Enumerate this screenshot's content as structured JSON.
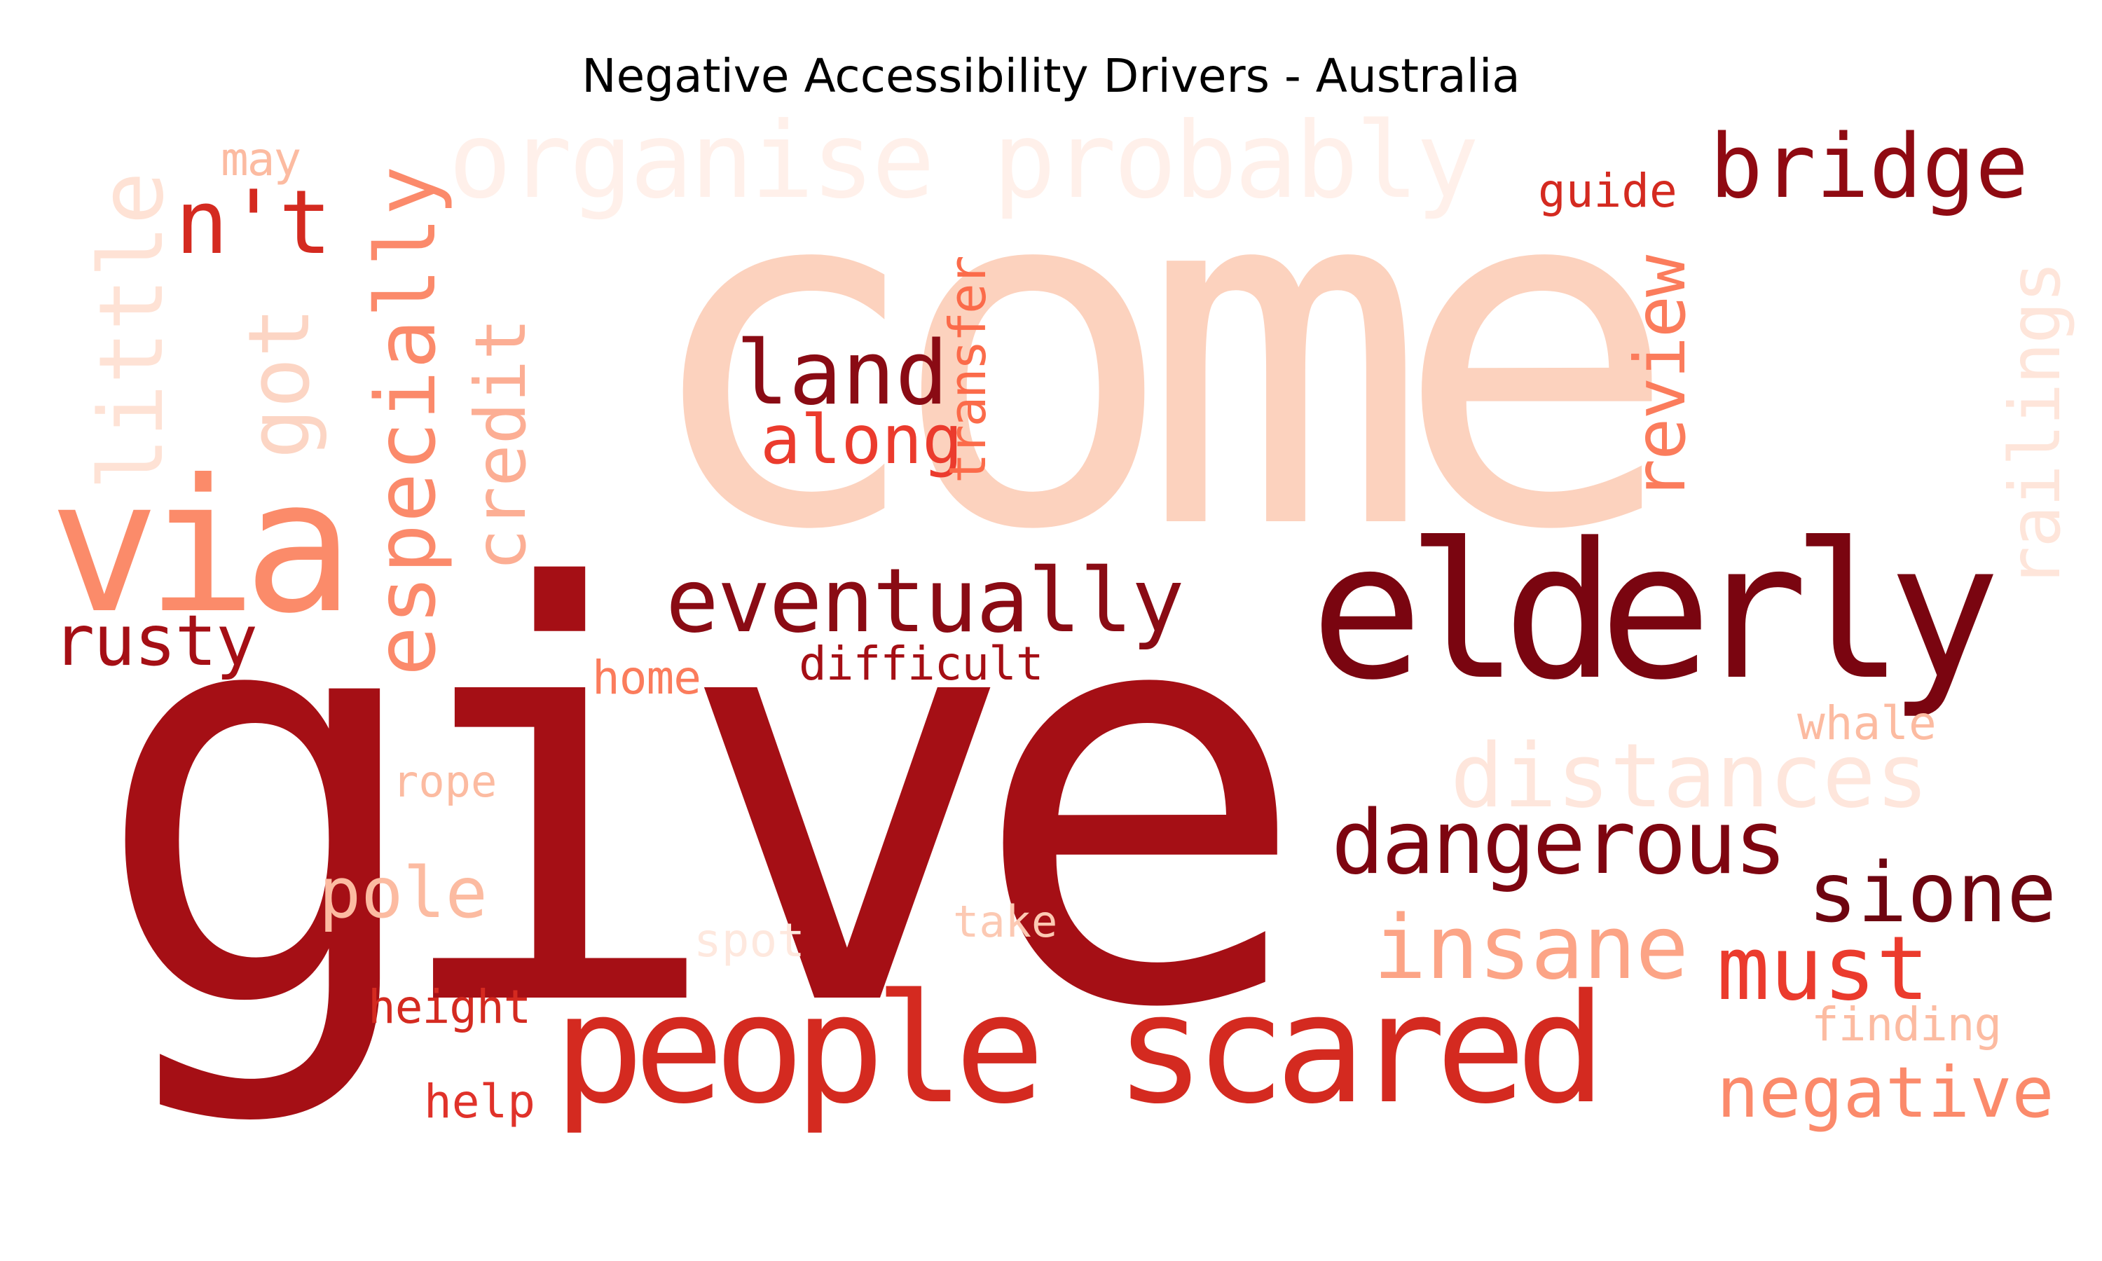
{
  "title": "Negative Accessibility Drivers - Australia",
  "colormap": "Reds",
  "words": [
    {
      "text": "come",
      "color": "#fcd2be"
    },
    {
      "text": "give",
      "color": "#a50f15"
    },
    {
      "text": "elderly",
      "color": "#7a0510"
    },
    {
      "text": "people scared",
      "color": "#d42a20"
    },
    {
      "text": "via",
      "color": "#fb8b6a"
    },
    {
      "text": "organise probably",
      "color": "#fff0ea"
    },
    {
      "text": "bridge",
      "color": "#8f0a12"
    },
    {
      "text": "eventually",
      "color": "#8a0b14"
    },
    {
      "text": "dangerous",
      "color": "#7e0510"
    },
    {
      "text": "sione",
      "color": "#6e0510"
    },
    {
      "text": "insane",
      "color": "#fca486"
    },
    {
      "text": "must",
      "color": "#eb3b2d"
    },
    {
      "text": "negative",
      "color": "#fb8a6b"
    },
    {
      "text": "distances",
      "color": "#fee6dc"
    },
    {
      "text": "land",
      "color": "#8a0b14"
    },
    {
      "text": "along",
      "color": "#eb3b2d"
    },
    {
      "text": "n't",
      "color": "#d42a20"
    },
    {
      "text": "rusty",
      "color": "#a50f15"
    },
    {
      "text": "pole",
      "color": "#fcbba1"
    },
    {
      "text": "especially",
      "color": "#fb8a6b"
    },
    {
      "text": "credit",
      "color": "#fcae94"
    },
    {
      "text": "little",
      "color": "#fee2d5"
    },
    {
      "text": "got",
      "color": "#fcd5c4"
    },
    {
      "text": "review",
      "color": "#fb7c5c"
    },
    {
      "text": "railings",
      "color": "#fee5da"
    },
    {
      "text": "transfer",
      "color": "#fb6b4a"
    },
    {
      "text": "guide",
      "color": "#d42a20"
    },
    {
      "text": "may",
      "color": "#fcbba1"
    },
    {
      "text": "home",
      "color": "#fb7c5c"
    },
    {
      "text": "difficult",
      "color": "#a50f15"
    },
    {
      "text": "rope",
      "color": "#fcbba1"
    },
    {
      "text": "whale",
      "color": "#fcbba1"
    },
    {
      "text": "take",
      "color": "#fcc9b3"
    },
    {
      "text": "spot",
      "color": "#fee8de"
    },
    {
      "text": "height",
      "color": "#d42a20"
    },
    {
      "text": "help",
      "color": "#e0322a"
    },
    {
      "text": "finding",
      "color": "#fcbba1"
    }
  ]
}
